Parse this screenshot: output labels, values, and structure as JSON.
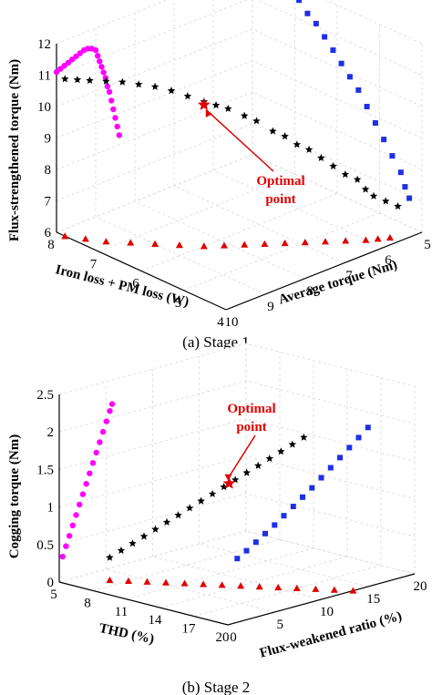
{
  "colors": {
    "magenta": "#ff00ff",
    "black": "#000000",
    "blue": "#1f2fe6",
    "red": "#e00000",
    "grid": "#d9d9d9"
  },
  "captions": {
    "stage1": "(a) Stage 1",
    "stage2": "(b) Stage 2"
  },
  "chart_data": [
    {
      "type": "scatter",
      "subtype": "3d-scatter-with-projections",
      "title": "",
      "zlabel": "Flux-strengthened torque (Nm)",
      "xlabel": "Iron loss + PM loss (W)",
      "ylabel": "Average torque (Nm)",
      "z_ticks": [
        "6",
        "7",
        "8",
        "9",
        "10",
        "11",
        "12"
      ],
      "x_ticks": [
        "8",
        "7",
        "6",
        "5",
        "4"
      ],
      "y_ticks": [
        "10",
        "9",
        "8",
        "7",
        "6",
        "5"
      ],
      "grid": true,
      "annotation": {
        "line1": "Optimal",
        "line2": "point"
      },
      "series": [
        {
          "name": "",
          "marker": "circle",
          "color": "magenta",
          "plane": "right-wall",
          "points": [
            [
              10.0,
              11.1
            ],
            [
              9.9,
              11.15
            ],
            [
              9.8,
              11.2
            ],
            [
              9.7,
              11.25
            ],
            [
              9.6,
              11.3
            ],
            [
              9.5,
              11.35
            ],
            [
              9.4,
              11.4
            ],
            [
              9.3,
              11.45
            ],
            [
              9.2,
              11.45
            ],
            [
              9.1,
              11.4
            ],
            [
              9.0,
              11.3
            ],
            [
              8.95,
              11.1
            ],
            [
              8.9,
              10.9
            ],
            [
              8.85,
              10.7
            ],
            [
              8.8,
              10.5
            ],
            [
              8.75,
              10.3
            ],
            [
              8.7,
              10.0
            ],
            [
              8.65,
              9.8
            ],
            [
              8.6,
              9.5
            ],
            [
              8.55,
              9.2
            ],
            [
              8.5,
              8.9
            ],
            [
              8.45,
              8.6
            ],
            [
              8.4,
              8.3
            ]
          ]
        },
        {
          "name": "",
          "marker": "star",
          "color": "black",
          "plane": "3d",
          "points": [
            [
              7.8,
              10.0,
              11.0
            ],
            [
              7.6,
              9.9,
              11.05
            ],
            [
              7.4,
              9.8,
              11.1
            ],
            [
              7.2,
              9.6,
              11.1
            ],
            [
              7.0,
              9.4,
              11.1
            ],
            [
              6.8,
              9.2,
              11.05
            ],
            [
              6.6,
              9.0,
              11.0
            ],
            [
              6.4,
              8.8,
              10.9
            ],
            [
              6.2,
              8.6,
              10.75
            ],
            [
              6.0,
              8.4,
              10.6
            ],
            [
              5.9,
              8.2,
              10.45
            ],
            [
              5.8,
              8.0,
              10.3
            ],
            [
              5.6,
              7.8,
              10.1
            ],
            [
              5.5,
              7.6,
              9.9
            ],
            [
              5.3,
              7.4,
              9.6
            ],
            [
              5.2,
              7.2,
              9.4
            ],
            [
              5.1,
              7.0,
              9.1
            ],
            [
              5.0,
              6.8,
              8.9
            ],
            [
              4.9,
              6.6,
              8.6
            ],
            [
              4.8,
              6.4,
              8.3
            ],
            [
              4.7,
              6.2,
              8.0
            ],
            [
              4.6,
              6.0,
              7.8
            ],
            [
              4.5,
              5.9,
              7.5
            ],
            [
              4.4,
              5.8,
              7.3
            ],
            [
              4.3,
              5.6,
              7.1
            ],
            [
              4.2,
              5.4,
              6.9
            ]
          ]
        },
        {
          "name": "",
          "marker": "square",
          "color": "blue",
          "plane": "left-wall",
          "points": [
            [
              7.9,
              12.4
            ],
            [
              7.7,
              12.3
            ],
            [
              7.5,
              12.2
            ],
            [
              7.3,
              12.0
            ],
            [
              7.1,
              11.8
            ],
            [
              6.9,
              11.6
            ],
            [
              6.7,
              11.3
            ],
            [
              6.5,
              11.1
            ],
            [
              6.3,
              10.8
            ],
            [
              6.1,
              10.5
            ],
            [
              5.9,
              10.2
            ],
            [
              5.7,
              9.9
            ],
            [
              5.5,
              9.6
            ],
            [
              5.3,
              9.2
            ],
            [
              5.1,
              8.8
            ],
            [
              4.9,
              8.4
            ],
            [
              4.7,
              8.0
            ],
            [
              4.5,
              7.6
            ],
            [
              4.4,
              7.2
            ],
            [
              4.3,
              6.9
            ]
          ]
        },
        {
          "name": "",
          "marker": "triangle",
          "color": "red",
          "plane": "floor",
          "points": [
            [
              7.8,
              10.0
            ],
            [
              7.5,
              9.8
            ],
            [
              7.2,
              9.6
            ],
            [
              6.9,
              9.3
            ],
            [
              6.6,
              9.0
            ],
            [
              6.3,
              8.7
            ],
            [
              6.0,
              8.4
            ],
            [
              5.8,
              8.1
            ],
            [
              5.6,
              7.8
            ],
            [
              5.4,
              7.5
            ],
            [
              5.2,
              7.2
            ],
            [
              5.0,
              6.9
            ],
            [
              4.8,
              6.6
            ],
            [
              4.6,
              6.3
            ],
            [
              4.4,
              6.0
            ],
            [
              4.3,
              5.8
            ],
            [
              4.2,
              5.6
            ]
          ]
        }
      ],
      "optimal_point": {
        "x": 6.0,
        "y": 8.4,
        "z": 10.5
      }
    },
    {
      "type": "scatter",
      "subtype": "3d-scatter-with-projections",
      "title": "",
      "zlabel": "Cogging torque (Nm)",
      "xlabel": "THD (%)",
      "ylabel": "Flux-weakened ratio (%)",
      "z_ticks": [
        "0",
        "0.5",
        "1",
        "1.5",
        "2",
        "2.5"
      ],
      "x_ticks": [
        "5",
        "8",
        "11",
        "14",
        "17",
        "20"
      ],
      "y_ticks": [
        "0",
        "5",
        "10",
        "15",
        "20"
      ],
      "grid": true,
      "annotation": {
        "line1": "Optimal",
        "line2": "point"
      },
      "series": [
        {
          "name": "",
          "marker": "circle",
          "color": "magenta",
          "plane": "left-wall",
          "points": [
            [
              5.3,
              0.35
            ],
            [
              5.6,
              0.5
            ],
            [
              5.9,
              0.65
            ],
            [
              6.2,
              0.8
            ],
            [
              6.5,
              0.95
            ],
            [
              6.8,
              1.1
            ],
            [
              7.1,
              1.25
            ],
            [
              7.4,
              1.4
            ],
            [
              7.7,
              1.55
            ],
            [
              8.0,
              1.7
            ],
            [
              8.3,
              1.85
            ],
            [
              8.6,
              2.0
            ],
            [
              8.9,
              2.15
            ],
            [
              9.2,
              2.3
            ],
            [
              9.5,
              2.45
            ],
            [
              9.7,
              2.55
            ]
          ]
        },
        {
          "name": "",
          "marker": "star",
          "color": "black",
          "plane": "3d",
          "points": [
            [
              7.0,
              3.0,
              0.3
            ],
            [
              7.6,
              3.5,
              0.4
            ],
            [
              8.2,
              4.0,
              0.5
            ],
            [
              8.8,
              4.5,
              0.6
            ],
            [
              9.4,
              5.0,
              0.7
            ],
            [
              10.0,
              5.5,
              0.8
            ],
            [
              10.6,
              6.0,
              0.9
            ],
            [
              11.2,
              6.5,
              1.0
            ],
            [
              11.8,
              7.0,
              1.1
            ],
            [
              12.4,
              7.5,
              1.2
            ],
            [
              13.0,
              8.0,
              1.3
            ],
            [
              13.6,
              8.5,
              1.4
            ],
            [
              14.2,
              9.0,
              1.5
            ],
            [
              14.8,
              9.5,
              1.6
            ],
            [
              15.4,
              10.0,
              1.7
            ],
            [
              16.0,
              10.5,
              1.8
            ],
            [
              16.6,
              11.0,
              1.9
            ],
            [
              17.2,
              11.5,
              2.0
            ]
          ]
        },
        {
          "name": "",
          "marker": "square",
          "color": "blue",
          "plane": "right-wall",
          "points": [
            [
              1.0,
              0.85
            ],
            [
              2.0,
              0.92
            ],
            [
              3.0,
              1.0
            ],
            [
              4.0,
              1.08
            ],
            [
              5.0,
              1.16
            ],
            [
              6.0,
              1.25
            ],
            [
              7.0,
              1.34
            ],
            [
              8.0,
              1.43
            ],
            [
              9.0,
              1.52
            ],
            [
              10.0,
              1.62
            ],
            [
              11.0,
              1.72
            ],
            [
              12.0,
              1.82
            ],
            [
              13.0,
              1.92
            ],
            [
              14.0,
              2.02
            ],
            [
              15.0,
              2.12
            ]
          ]
        },
        {
          "name": "",
          "marker": "triangle",
          "color": "red",
          "plane": "floor",
          "points": [
            [
              7.0,
              3.0
            ],
            [
              8.0,
              3.8
            ],
            [
              9.0,
              4.6
            ],
            [
              10.0,
              5.4
            ],
            [
              11.0,
              6.2
            ],
            [
              12.0,
              7.0
            ],
            [
              13.0,
              7.8
            ],
            [
              14.0,
              8.6
            ],
            [
              15.0,
              9.4
            ],
            [
              16.0,
              10.2
            ],
            [
              17.0,
              11.0
            ],
            [
              18.0,
              11.8
            ],
            [
              19.0,
              12.6
            ],
            [
              20.0,
              13.4
            ]
          ]
        }
      ],
      "optimal_point": {
        "x": 13.3,
        "y": 8.2,
        "z": 1.35
      }
    }
  ]
}
